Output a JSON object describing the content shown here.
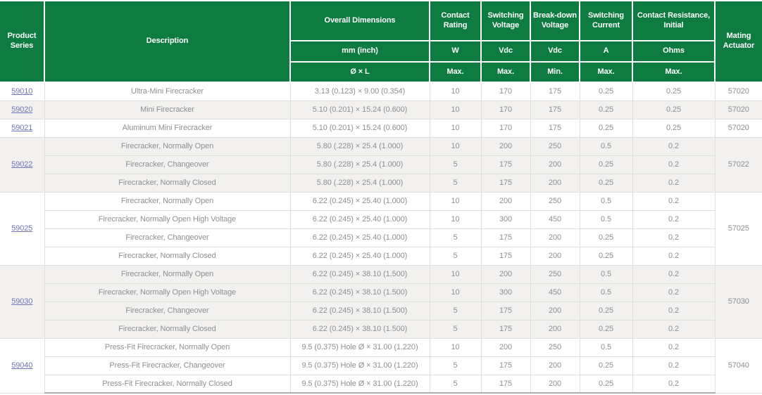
{
  "colors": {
    "header_green": "#0E7C40",
    "header_text": "#FFFFFF",
    "link_color": "#7173B9",
    "body_text": "#8F8F8F",
    "row_alt_gray": "#F2F1EF",
    "grid_border": "#DEDEDC",
    "table_bottom_border": "#ACACAA"
  },
  "table": {
    "columns": [
      {
        "id": "product_series",
        "label": "Product Series"
      },
      {
        "id": "description",
        "label": "Description"
      },
      {
        "id": "dimensions",
        "label": "Overall Dimensions",
        "unit": "mm (inch)",
        "qualifier": "Ø × L"
      },
      {
        "id": "contact_rating",
        "label": "Contact Rating",
        "unit": "W",
        "qualifier": "Max."
      },
      {
        "id": "switching_voltage",
        "label": "Switching Voltage",
        "unit": "Vdc",
        "qualifier": "Max."
      },
      {
        "id": "breakdown_voltage",
        "label": "Break-down Voltage",
        "unit": "Vdc",
        "qualifier": "Min."
      },
      {
        "id": "switching_current",
        "label": "Switching Current",
        "unit": "A",
        "qualifier": "Max."
      },
      {
        "id": "contact_resistance",
        "label": "Contact Resistance, Initial",
        "unit": "Ohms",
        "qualifier": "Max."
      },
      {
        "id": "mating_actuator",
        "label": "Mating Actuator"
      }
    ],
    "groups": [
      {
        "series": "59010",
        "shade": "white",
        "merged_actuator": false,
        "rows": [
          {
            "description": "Ultra-Mini Firecracker",
            "dimensions": "3.13 (0.123) × 9.00 (0.354)",
            "contact_rating": "10",
            "switching_voltage": "170",
            "breakdown_voltage": "175",
            "switching_current": "0.25",
            "contact_resistance": "0.25",
            "mating_actuator": "57020"
          }
        ]
      },
      {
        "series": "59020",
        "shade": "gray",
        "merged_actuator": false,
        "rows": [
          {
            "description": "Mini Firecracker",
            "dimensions": "5.10 (0.201) × 15.24 (0.600)",
            "contact_rating": "10",
            "switching_voltage": "170",
            "breakdown_voltage": "175",
            "switching_current": "0.25",
            "contact_resistance": "0.25",
            "mating_actuator": "57020"
          }
        ]
      },
      {
        "series": "59021",
        "shade": "white",
        "merged_actuator": false,
        "rows": [
          {
            "description": "Aluminum Mini Firecracker",
            "dimensions": "5.10 (0.201) × 15.24 (0.600)",
            "contact_rating": "10",
            "switching_voltage": "170",
            "breakdown_voltage": "175",
            "switching_current": "0.25",
            "contact_resistance": "0.25",
            "mating_actuator": "57020"
          }
        ]
      },
      {
        "series": "59022",
        "shade": "gray",
        "merged_actuator": true,
        "mating_actuator": "57022",
        "rows": [
          {
            "description": "Firecracker, Normally Open",
            "dimensions": "5.80 (.228) × 25.4 (1.000)",
            "contact_rating": "10",
            "switching_voltage": "200",
            "breakdown_voltage": "250",
            "switching_current": "0.5",
            "contact_resistance": "0.2"
          },
          {
            "description": "Firecracker, Changeover",
            "dimensions": "5.80 (.228) × 25.4 (1.000)",
            "contact_rating": "5",
            "switching_voltage": "175",
            "breakdown_voltage": "200",
            "switching_current": "0.25",
            "contact_resistance": "0.2"
          },
          {
            "description": "Firecracker, Normally Closed",
            "dimensions": "5.80 (.228) × 25.4 (1.000)",
            "contact_rating": "5",
            "switching_voltage": "175",
            "breakdown_voltage": "200",
            "switching_current": "0.25",
            "contact_resistance": "0.2"
          }
        ]
      },
      {
        "series": "59025",
        "shade": "white",
        "merged_actuator": true,
        "mating_actuator": "57025",
        "rows": [
          {
            "description": "Firecracker, Normally Open",
            "dimensions": "6.22 (0.245) × 25.40 (1.000)",
            "contact_rating": "10",
            "switching_voltage": "200",
            "breakdown_voltage": "250",
            "switching_current": "0.5",
            "contact_resistance": "0.2"
          },
          {
            "description": "Firecracker, Normally Open High Voltage",
            "dimensions": "6.22 (0.245) × 25.40 (1.000)",
            "contact_rating": "10",
            "switching_voltage": "300",
            "breakdown_voltage": "450",
            "switching_current": "0.5",
            "contact_resistance": "0.2"
          },
          {
            "description": "Firecracker, Changeover",
            "dimensions": "6.22 (0.245) × 25.40 (1.000)",
            "contact_rating": "5",
            "switching_voltage": "175",
            "breakdown_voltage": "200",
            "switching_current": "0.25",
            "contact_resistance": "0.2"
          },
          {
            "description": "Firecracker, Normally Closed",
            "dimensions": "6.22 (0.245) × 25.40 (1.000)",
            "contact_rating": "5",
            "switching_voltage": "175",
            "breakdown_voltage": "200",
            "switching_current": "0.25",
            "contact_resistance": "0.2"
          }
        ]
      },
      {
        "series": "59030",
        "shade": "gray",
        "merged_actuator": true,
        "mating_actuator": "57030",
        "rows": [
          {
            "description": "Firecracker, Normally Open",
            "dimensions": "6.22 (0.245) × 38.10 (1.500)",
            "contact_rating": "10",
            "switching_voltage": "200",
            "breakdown_voltage": "250",
            "switching_current": "0.5",
            "contact_resistance": "0.2"
          },
          {
            "description": "Firecracker, Normally Open High Voltage",
            "dimensions": "6.22 (0.245) × 38.10 (1.500)",
            "contact_rating": "10",
            "switching_voltage": "300",
            "breakdown_voltage": "450",
            "switching_current": "0.5",
            "contact_resistance": "0.2"
          },
          {
            "description": "Firecracker, Changeover",
            "dimensions": "6.22 (0.245) × 38.10 (1.500)",
            "contact_rating": "5",
            "switching_voltage": "175",
            "breakdown_voltage": "200",
            "switching_current": "0.25",
            "contact_resistance": "0.2"
          },
          {
            "description": "Firecracker, Normally Closed",
            "dimensions": "6.22 (0.245) × 38.10 (1.500)",
            "contact_rating": "5",
            "switching_voltage": "175",
            "breakdown_voltage": "200",
            "switching_current": "0.25",
            "contact_resistance": "0.2"
          }
        ]
      },
      {
        "series": "59040",
        "shade": "white",
        "merged_actuator": true,
        "mating_actuator": "57040",
        "rows": [
          {
            "description": "Press-Fit Firecracker, Normally Open",
            "dimensions": "9.5 (0.375) Hole Ø × 31.00 (1.220)",
            "contact_rating": "10",
            "switching_voltage": "200",
            "breakdown_voltage": "250",
            "switching_current": "0.5",
            "contact_resistance": "0.2"
          },
          {
            "description": "Press-Fit Firecracker, Changeover",
            "dimensions": "9.5 (0.375) Hole Ø × 31.00 (1.220)",
            "contact_rating": "5",
            "switching_voltage": "175",
            "breakdown_voltage": "200",
            "switching_current": "0.25",
            "contact_resistance": "0.2"
          },
          {
            "description": "Press-Fit Firecracker, Normally Closed",
            "dimensions": "9.5 (0.375) Hole Ø × 31.00 (1.220)",
            "contact_rating": "5",
            "switching_voltage": "175",
            "breakdown_voltage": "200",
            "switching_current": "0.25",
            "contact_resistance": "0.2"
          }
        ]
      }
    ]
  }
}
